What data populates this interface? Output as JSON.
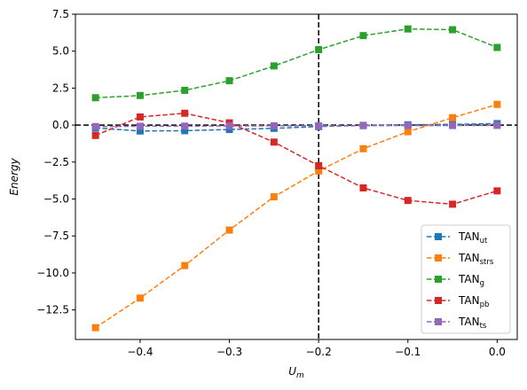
{
  "chart_data": {
    "type": "line",
    "xlabel_main": "U",
    "xlabel_sub": "m",
    "ylabel": "Energy",
    "xlim": [
      -0.4725,
      0.0225
    ],
    "ylim": [
      -14.5,
      7.5
    ],
    "xticks": [
      -0.4,
      -0.3,
      -0.2,
      -0.1,
      0.0
    ],
    "xtick_labels": [
      "−0.4",
      "−0.3",
      "−0.2",
      "−0.1",
      "0.0"
    ],
    "yticks": [
      -12.5,
      -10.0,
      -7.5,
      -5.0,
      -2.5,
      0.0,
      2.5,
      5.0,
      7.5
    ],
    "ytick_labels": [
      "−12.5",
      "−10.0",
      "−7.5",
      "−5.0",
      "−2.5",
      "0.0",
      "2.5",
      "5.0",
      "7.5"
    ],
    "reference_lines": {
      "vertical_x": -0.2,
      "horizontal_y": 0.0,
      "color": "#000000",
      "style": "dashed"
    },
    "x": [
      -0.45,
      -0.4,
      -0.35,
      -0.3,
      -0.25,
      -0.2,
      -0.15,
      -0.1,
      -0.05,
      0.0
    ],
    "series": [
      {
        "name": "TAN",
        "sub": "ut",
        "color": "#1f77b4",
        "values": [
          -0.2,
          -0.4,
          -0.38,
          -0.3,
          -0.22,
          -0.1,
          -0.02,
          0.02,
          0.05,
          0.1
        ]
      },
      {
        "name": "TAN",
        "sub": "strs",
        "color": "#ff7f0e",
        "values": [
          -13.7,
          -11.7,
          -9.5,
          -7.1,
          -4.85,
          -3.1,
          -1.6,
          -0.45,
          0.5,
          1.4
        ]
      },
      {
        "name": "TAN",
        "sub": "g",
        "color": "#2ca02c",
        "values": [
          1.85,
          2.0,
          2.35,
          3.0,
          4.0,
          5.1,
          6.05,
          6.5,
          6.45,
          5.25
        ]
      },
      {
        "name": "TAN",
        "sub": "pb",
        "color": "#d62728",
        "values": [
          -0.7,
          0.55,
          0.8,
          0.15,
          -1.15,
          -2.75,
          -4.25,
          -5.1,
          -5.35,
          -4.45
        ]
      },
      {
        "name": "TAN",
        "sub": "ts",
        "color": "#9467bd",
        "values": [
          -0.1,
          -0.08,
          -0.07,
          -0.06,
          -0.05,
          -0.05,
          -0.04,
          -0.03,
          -0.03,
          -0.02
        ]
      }
    ],
    "legend_position": "lower-right",
    "grid": false
  }
}
